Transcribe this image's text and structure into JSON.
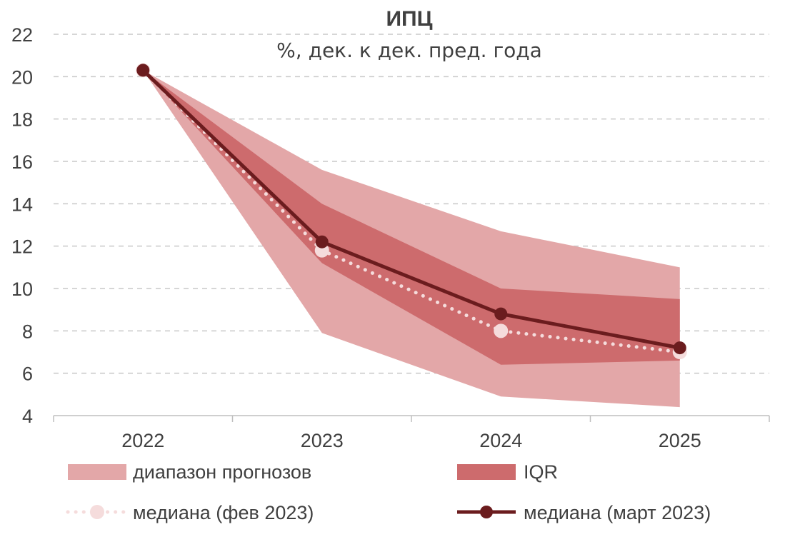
{
  "chart_data": {
    "type": "line",
    "title": "ИПЦ",
    "subtitle": "%, дек. к дек. пред. года",
    "categories": [
      "2022",
      "2023",
      "2024",
      "2025"
    ],
    "y_ticks": [
      "4",
      "6",
      "8",
      "10",
      "12",
      "14",
      "16",
      "18",
      "20",
      "22"
    ],
    "ylim": [
      4,
      22
    ],
    "grid": true,
    "legend_position": "bottom",
    "bands": [
      {
        "name": "диапазон прогнозов",
        "color": "#e3a7a8",
        "lower": [
          20.3,
          7.9,
          4.9,
          4.4
        ],
        "upper": [
          20.3,
          15.6,
          12.7,
          11.0
        ]
      },
      {
        "name": "IQR",
        "color": "#cd6b6d",
        "lower": [
          20.3,
          11.2,
          6.4,
          6.6
        ],
        "upper": [
          20.3,
          14.0,
          10.0,
          9.5
        ]
      }
    ],
    "series": [
      {
        "name": "медиана (фев 2023)",
        "style": "dotted",
        "color": "#f5dcdc",
        "values": [
          20.3,
          11.8,
          8.0,
          7.0
        ]
      },
      {
        "name": "медиана (март 2023)",
        "style": "solid",
        "color": "#6b1c1e",
        "values": [
          20.3,
          12.2,
          8.8,
          7.2
        ]
      }
    ]
  }
}
